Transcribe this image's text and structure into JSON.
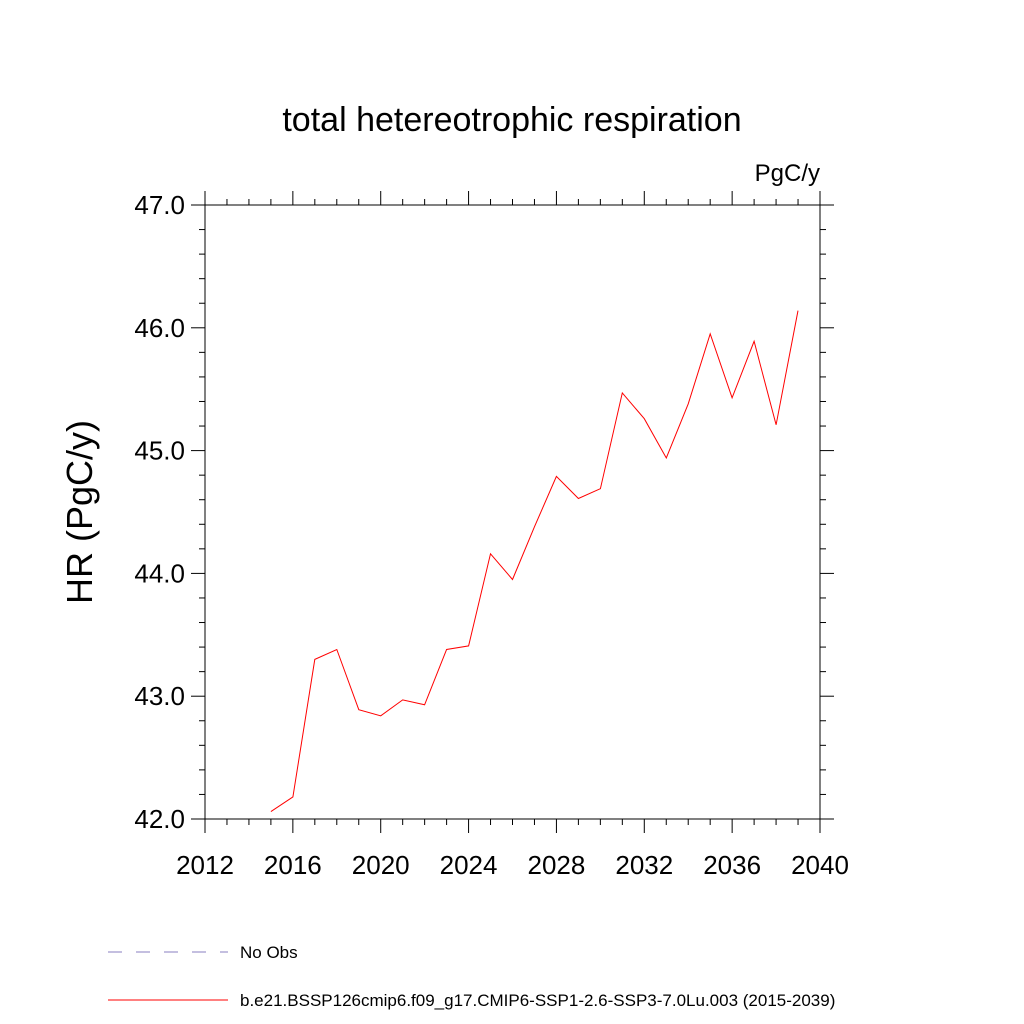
{
  "chart_data": {
    "type": "line",
    "title": "total hetereotrophic respiration",
    "units_label": "PgC/y",
    "ylabel": "HR  (PgC/y)",
    "xlabel": "",
    "xlim": [
      2012,
      2040
    ],
    "ylim": [
      42.0,
      47.0
    ],
    "x_ticks": [
      2012,
      2016,
      2020,
      2024,
      2028,
      2032,
      2036,
      2040
    ],
    "x_tick_labels": [
      "2012",
      "2016",
      "2020",
      "2024",
      "2028",
      "2032",
      "2036",
      "2040"
    ],
    "y_ticks": [
      42.0,
      43.0,
      44.0,
      45.0,
      46.0,
      47.0
    ],
    "y_tick_labels": [
      "42.0",
      "43.0",
      "44.0",
      "45.0",
      "46.0",
      "47.0"
    ],
    "grid": false,
    "legend_position": "bottom",
    "series": [
      {
        "name": "b.e21.BSSP126cmip6.f09_g17.CMIP6-SSP1-2.6-SSP3-7.0Lu.003 (2015-2039)",
        "color": "#ff0000",
        "style": "solid",
        "x": [
          2015,
          2016,
          2017,
          2018,
          2019,
          2020,
          2021,
          2022,
          2023,
          2024,
          2025,
          2026,
          2027,
          2028,
          2029,
          2030,
          2031,
          2032,
          2033,
          2034,
          2035,
          2036,
          2037,
          2038,
          2039
        ],
        "y": [
          42.06,
          42.18,
          43.3,
          43.38,
          42.89,
          42.84,
          42.97,
          42.93,
          43.38,
          43.41,
          44.16,
          43.95,
          44.38,
          44.79,
          44.61,
          44.69,
          45.47,
          45.26,
          44.94,
          45.38,
          45.95,
          45.43,
          45.89,
          45.21,
          46.14
        ]
      }
    ],
    "legend": [
      {
        "label": "No Obs",
        "color": "#8a7fc0",
        "style": "dashed"
      },
      {
        "label": "b.e21.BSSP126cmip6.f09_g17.CMIP6-SSP1-2.6-SSP3-7.0Lu.003 (2015-2039)",
        "color": "#ff0000",
        "style": "solid"
      }
    ]
  }
}
